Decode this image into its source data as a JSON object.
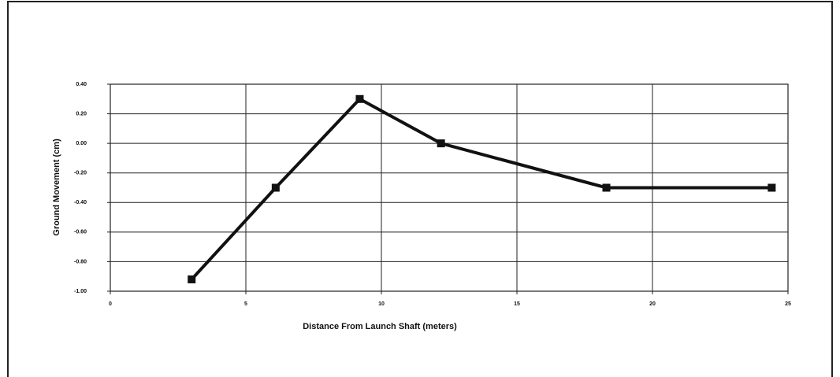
{
  "chart_data": {
    "type": "line",
    "x_label": "Distance From Launch Shaft (meters)",
    "y_label": "Ground Movement (cm)",
    "x": [
      3,
      6.1,
      9.2,
      12.2,
      18.3,
      24.4
    ],
    "series": [
      {
        "name": "Ground Movement",
        "color": "#111111",
        "values": [
          -0.92,
          -0.3,
          0.3,
          0,
          -0.3,
          -0.3
        ]
      }
    ],
    "xlim": [
      0,
      25
    ],
    "xticks": [
      0,
      5,
      10,
      15,
      20,
      25
    ],
    "ylim": [
      -1,
      0.4
    ],
    "yticks": [
      {
        "value": -1,
        "label": "-1.00"
      },
      {
        "value": -0.8,
        "label": "-0.80"
      },
      {
        "value": -0.6,
        "label": "-0.60"
      },
      {
        "value": -0.4,
        "label": "-0.40"
      },
      {
        "value": -0.2,
        "label": "-0.20"
      },
      {
        "value": 0,
        "label": "0.00"
      },
      {
        "value": 0.2,
        "label": "0.20"
      },
      {
        "value": 0.4,
        "label": "0.40"
      }
    ],
    "grid": true
  }
}
